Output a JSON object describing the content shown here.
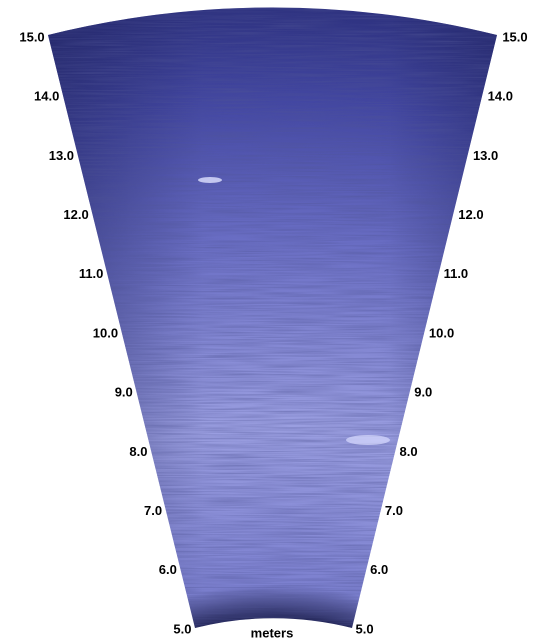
{
  "range_labels": [
    "5.0",
    "6.0",
    "7.0",
    "8.0",
    "9.0",
    "10.0",
    "11.0",
    "12.0",
    "13.0",
    "14.0",
    "15.0"
  ],
  "unit_label": "meters"
}
